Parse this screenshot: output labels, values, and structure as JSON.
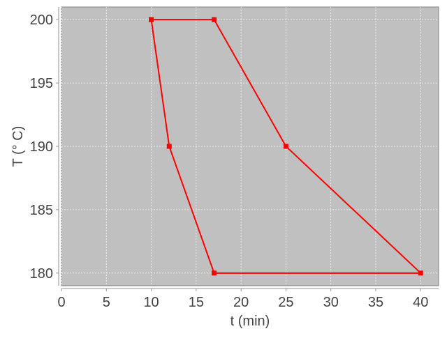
{
  "chart_data": {
    "type": "line",
    "title": "",
    "xlabel": "t (min)",
    "ylabel": "T (° C)",
    "xlim": [
      0,
      42
    ],
    "ylim": [
      179,
      201
    ],
    "xticks": [
      0,
      5,
      10,
      15,
      20,
      25,
      30,
      35,
      40
    ],
    "yticks": [
      180,
      185,
      190,
      195,
      200
    ],
    "grid": true,
    "background": "#c0c0c0",
    "series": [
      {
        "color": "#ff0000",
        "marker": "square",
        "x": [
          10,
          12,
          17,
          40,
          25,
          17,
          10
        ],
        "y": [
          200,
          190,
          180,
          180,
          190,
          200,
          200
        ]
      }
    ]
  }
}
